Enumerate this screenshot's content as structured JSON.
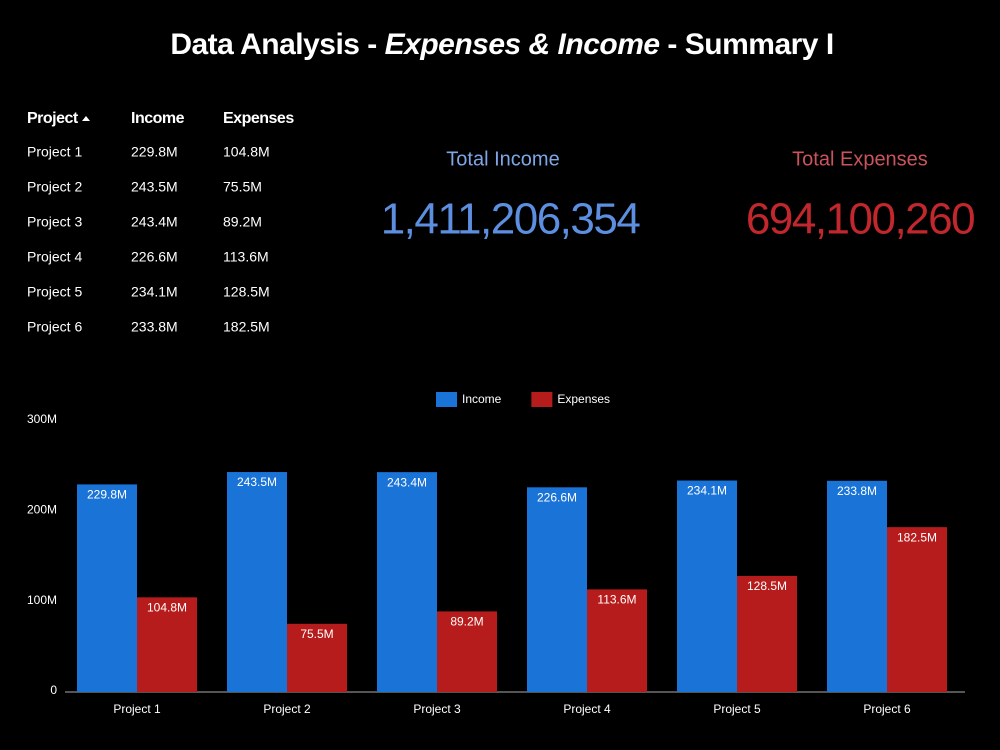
{
  "header": {
    "title": [
      "Data Analysis - ",
      "Expenses & Income",
      " - Summary I"
    ]
  },
  "table": {
    "columns": [
      "Project",
      "Income",
      "Expenses"
    ],
    "rows": [
      [
        "Project 1",
        "229.8M",
        "104.8M"
      ],
      [
        "Project 2",
        "243.5M",
        "75.5M"
      ],
      [
        "Project 3",
        "243.4M",
        "89.2M"
      ],
      [
        "Project 4",
        "226.6M",
        "113.6M"
      ],
      [
        "Project 5",
        "234.1M",
        "128.5M"
      ],
      [
        "Project 6",
        "233.8M",
        "182.5M"
      ]
    ]
  },
  "scorecards": [
    {
      "label": "Total Income",
      "value": "1,411,206,354"
    },
    {
      "label": "Total Expenses",
      "value": "694,100,260"
    }
  ],
  "chart_data": {
    "type": "bar",
    "legend": "top",
    "categories": [
      "Project 1",
      "Project 2",
      "Project 3",
      "Project 4",
      "Project 5",
      "Project 6"
    ],
    "series": [
      {
        "name": "Income",
        "color": "#1a73d6",
        "values": [
          229.8,
          243.5,
          243.4,
          226.6,
          234.1,
          233.8
        ],
        "value_labels": [
          "229.8M",
          "243.5M",
          "243.4M",
          "226.6M",
          "234.1M",
          "233.8M"
        ]
      },
      {
        "name": "Expenses",
        "color": "#b71c1c",
        "values": [
          104.8,
          75.5,
          89.2,
          113.6,
          128.5,
          182.5
        ],
        "value_labels": [
          "104.8M",
          "75.5M",
          "89.2M",
          "113.6M",
          "128.5M",
          "182.5M"
        ]
      }
    ],
    "ylim": [
      0,
      300
    ],
    "yticks": [
      0,
      {
        "value": 100,
        "label": "100M"
      },
      {
        "value": 200,
        "label": "200M"
      },
      {
        "value": 300,
        "label": "300M"
      }
    ],
    "grid": false
  }
}
